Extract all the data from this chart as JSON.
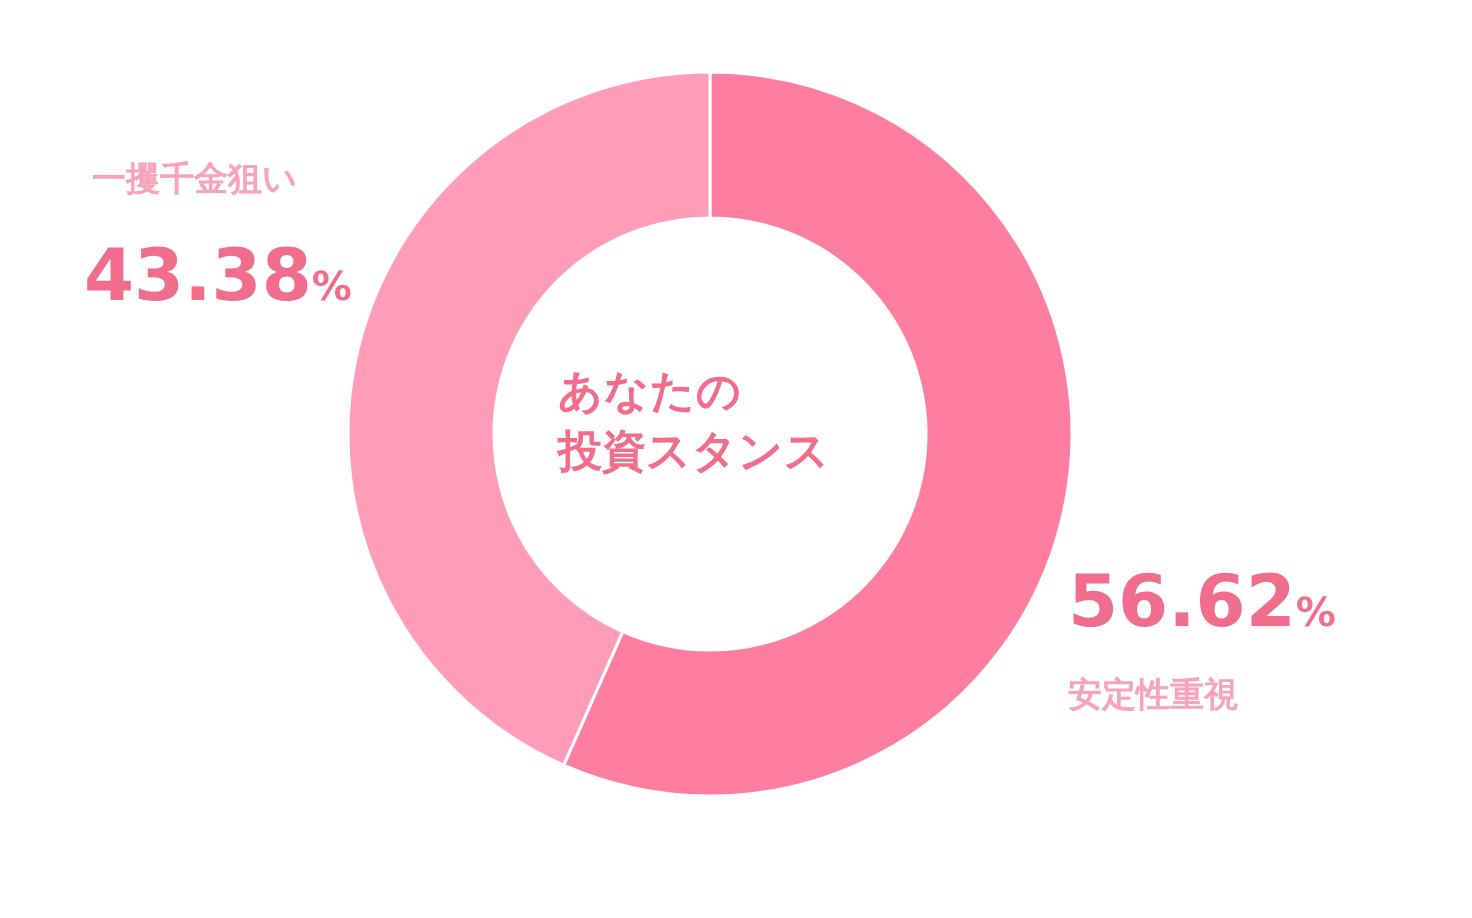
{
  "chart_data": {
    "type": "donut",
    "annotations": [
      "あなたの",
      "投資スタンス"
    ],
    "categories": [
      "安定性重視",
      "一攫千金狙い"
    ],
    "values": [
      56.62,
      43.38
    ],
    "colors": [
      "#ff7d9f",
      "#ff9cb9"
    ],
    "value_labels": [
      "56.62%",
      "43.38%"
    ]
  }
}
